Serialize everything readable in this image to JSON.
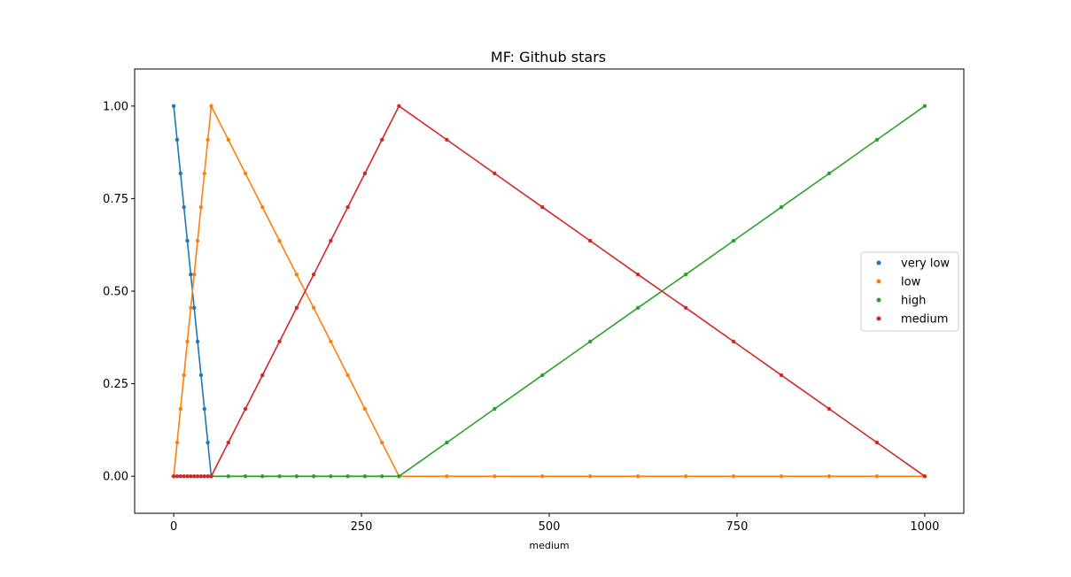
{
  "chart_data": {
    "type": "line",
    "title": "MF: Github stars",
    "xlabel": "medium",
    "ylabel": "",
    "xlim": [
      -52,
      1052
    ],
    "ylim": [
      -0.1,
      1.1
    ],
    "xticks": [
      0,
      250,
      500,
      750,
      1000
    ],
    "xtick_labels": [
      "0",
      "250",
      "500",
      "750",
      "1000"
    ],
    "yticks": [
      0,
      0.25,
      0.5,
      0.75,
      1.0
    ],
    "ytick_labels": [
      "0.00",
      "0.25",
      "0.50",
      "0.75",
      "1.00"
    ],
    "grid": false,
    "legend_position": "center-right",
    "series": [
      {
        "name": "very low",
        "color": "#1f77b4",
        "x": [
          0,
          4.55,
          9.09,
          13.64,
          18.18,
          22.73,
          27.27,
          31.82,
          36.36,
          40.91,
          45.45,
          50
        ],
        "y": [
          1.0,
          0.909,
          0.818,
          0.727,
          0.636,
          0.545,
          0.455,
          0.364,
          0.273,
          0.182,
          0.091,
          0.0
        ]
      },
      {
        "name": "low",
        "color": "#ff7f0e",
        "x": [
          0,
          4.55,
          9.09,
          13.64,
          18.18,
          22.73,
          27.27,
          31.82,
          36.36,
          40.91,
          45.45,
          50,
          72.73,
          95.45,
          118.18,
          140.91,
          163.64,
          186.36,
          209.09,
          231.82,
          254.55,
          277.27,
          300,
          363.64,
          427.27,
          490.91,
          554.55,
          618.18,
          681.82,
          745.45,
          809.09,
          872.73,
          936.36,
          1000
        ],
        "y": [
          0.0,
          0.091,
          0.182,
          0.273,
          0.364,
          0.455,
          0.545,
          0.636,
          0.727,
          0.818,
          0.909,
          1.0,
          0.909,
          0.818,
          0.727,
          0.636,
          0.545,
          0.455,
          0.364,
          0.273,
          0.182,
          0.091,
          0.0,
          0,
          0,
          0,
          0,
          0,
          0,
          0,
          0,
          0,
          0,
          0
        ]
      },
      {
        "name": "high",
        "color": "#2ca02c",
        "x": [
          50,
          72.73,
          95.45,
          118.18,
          140.91,
          163.64,
          186.36,
          209.09,
          231.82,
          254.55,
          277.27,
          300,
          363.64,
          427.27,
          490.91,
          554.55,
          618.18,
          681.82,
          745.45,
          809.09,
          872.73,
          936.36,
          1000
        ],
        "y": [
          0,
          0,
          0,
          0,
          0,
          0,
          0,
          0,
          0,
          0,
          0,
          0.0,
          0.091,
          0.182,
          0.273,
          0.364,
          0.455,
          0.545,
          0.636,
          0.727,
          0.818,
          0.909,
          1.0
        ]
      },
      {
        "name": "medium",
        "color": "#d62728",
        "x": [
          0,
          4.55,
          9.09,
          13.64,
          18.18,
          22.73,
          27.27,
          31.82,
          36.36,
          40.91,
          45.45,
          50,
          72.73,
          95.45,
          118.18,
          140.91,
          163.64,
          186.36,
          209.09,
          231.82,
          254.55,
          277.27,
          300,
          363.64,
          427.27,
          490.91,
          554.55,
          618.18,
          681.82,
          745.45,
          809.09,
          872.73,
          936.36,
          1000
        ],
        "y": [
          0,
          0,
          0,
          0,
          0,
          0,
          0,
          0,
          0,
          0,
          0,
          0.0,
          0.091,
          0.182,
          0.273,
          0.364,
          0.455,
          0.545,
          0.636,
          0.727,
          0.818,
          0.909,
          1.0,
          0.909,
          0.818,
          0.727,
          0.636,
          0.545,
          0.455,
          0.364,
          0.273,
          0.182,
          0.091,
          0.0
        ]
      }
    ]
  }
}
